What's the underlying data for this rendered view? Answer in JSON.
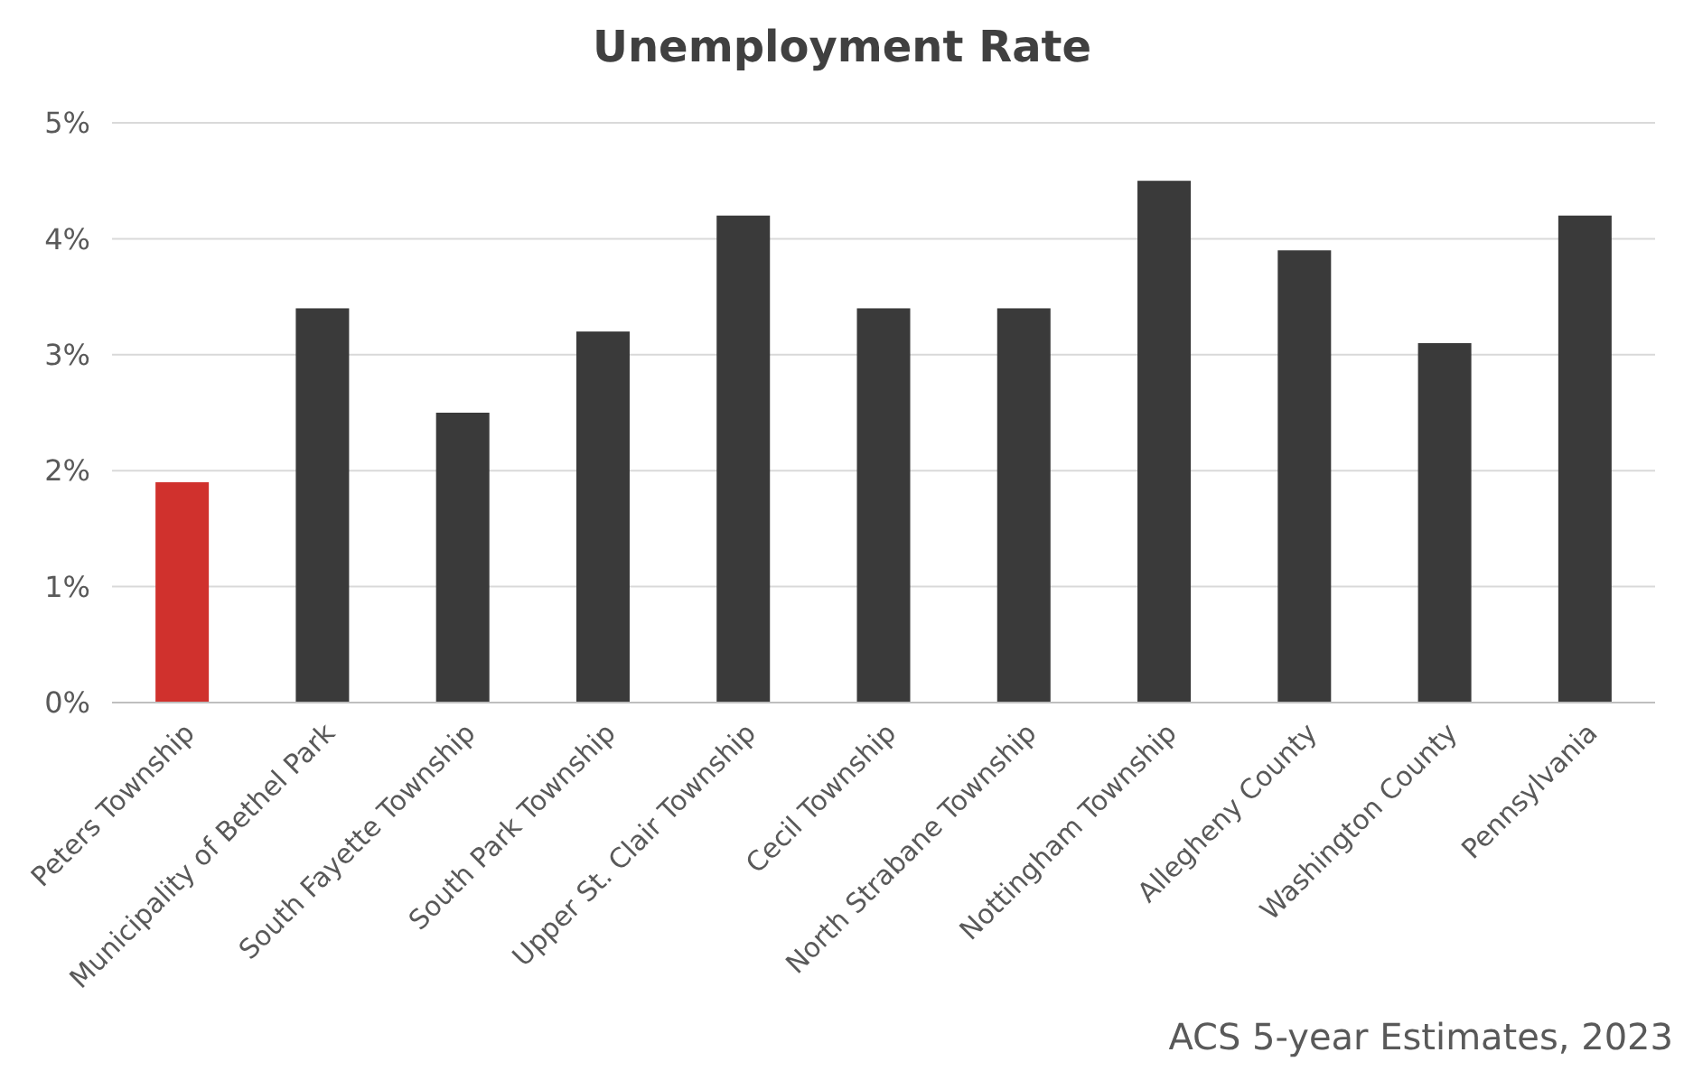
{
  "chart_data": {
    "type": "bar",
    "title": "Unemployment Rate",
    "categories": [
      "Peters Township",
      "Municipality of Bethel Park",
      "South Fayette Township",
      "South Park Township",
      "Upper St. Clair Township",
      "Cecil Township",
      "North Strabane Township",
      "Nottingham Township",
      "Allegheny County",
      "Washington County",
      "Pennsylvania"
    ],
    "values": [
      1.9,
      3.4,
      2.5,
      3.2,
      4.2,
      3.4,
      3.4,
      4.5,
      3.9,
      3.1,
      4.2
    ],
    "colors": [
      "#d0312d",
      "#3a3a3a",
      "#3a3a3a",
      "#3a3a3a",
      "#3a3a3a",
      "#3a3a3a",
      "#3a3a3a",
      "#3a3a3a",
      "#3a3a3a",
      "#3a3a3a",
      "#3a3a3a"
    ],
    "ylim": [
      0,
      5
    ],
    "yticks": [
      {
        "value": 0,
        "label": "0%"
      },
      {
        "value": 1,
        "label": "1%"
      },
      {
        "value": 2,
        "label": "2%"
      },
      {
        "value": 3,
        "label": "3%"
      },
      {
        "value": 4,
        "label": "4%"
      },
      {
        "value": 5,
        "label": "5%"
      }
    ],
    "grid": "y",
    "annotations": [
      "ACS 5-year Estimates, 2023"
    ]
  }
}
